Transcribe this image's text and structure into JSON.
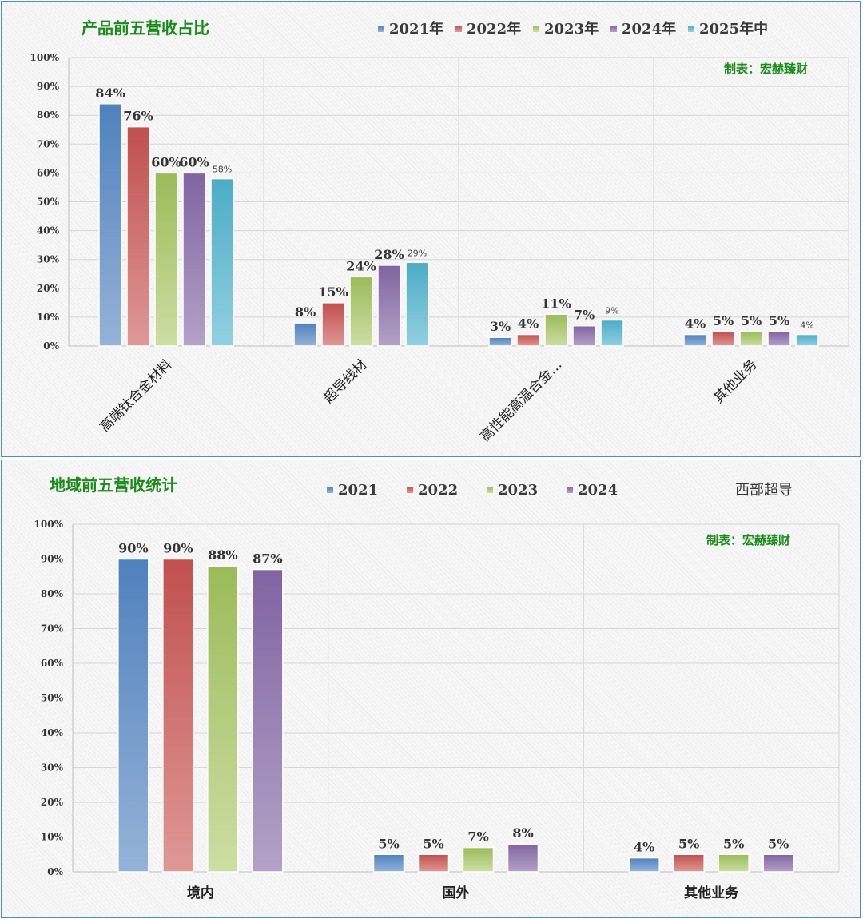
{
  "colors": {
    "s2021": [
      "#4f81bd",
      "#95b3d7"
    ],
    "s2022": [
      "#c0504d",
      "#df9896"
    ],
    "s2023": [
      "#9bbb59",
      "#cddea3"
    ],
    "s2024": [
      "#8064a2",
      "#b3a2c7"
    ],
    "s2025": [
      "#4bacc6",
      "#92d0e0"
    ]
  },
  "chart_data": [
    {
      "type": "bar",
      "title": "产品前五营收占比",
      "credit": "制表：宏赫臻财",
      "categories": [
        "高端钛合金材料",
        "超导线材",
        "高性能高温合金…",
        "其他业务"
      ],
      "series": [
        {
          "name": "2021年",
          "values": [
            84,
            8,
            3,
            4
          ],
          "labels": [
            "84%",
            "8%",
            "3%",
            "4%"
          ]
        },
        {
          "name": "2022年",
          "values": [
            76,
            15,
            4,
            5
          ],
          "labels": [
            "76%",
            "15%",
            "4%",
            "5%"
          ]
        },
        {
          "name": "2023年",
          "values": [
            60,
            24,
            11,
            5
          ],
          "labels": [
            "60%",
            "24%",
            "11%",
            "5%"
          ]
        },
        {
          "name": "2024年",
          "values": [
            60,
            28,
            7,
            5
          ],
          "labels": [
            "60%",
            "28%",
            "7%",
            "5%"
          ]
        },
        {
          "name": "2025年中",
          "values": [
            58,
            29,
            9,
            4
          ],
          "labels": [
            "58%",
            "29%",
            "9%",
            "4%"
          ]
        }
      ],
      "ylim": [
        0,
        100
      ],
      "yticks": [
        "0%",
        "10%",
        "20%",
        "30%",
        "40%",
        "50%",
        "60%",
        "70%",
        "80%",
        "90%",
        "100%"
      ],
      "grid": true,
      "legend": "top"
    },
    {
      "type": "bar",
      "title": "地域前五营收统计",
      "credit": "制表：宏赫臻财",
      "source": "西部超导",
      "categories": [
        "境内",
        "国外",
        "其他业务"
      ],
      "series": [
        {
          "name": "2021",
          "values": [
            90,
            5,
            4
          ],
          "labels": [
            "90%",
            "5%",
            "4%"
          ]
        },
        {
          "name": "2022",
          "values": [
            90,
            5,
            5
          ],
          "labels": [
            "90%",
            "5%",
            "5%"
          ]
        },
        {
          "name": "2023",
          "values": [
            88,
            7,
            5
          ],
          "labels": [
            "88%",
            "7%",
            "5%"
          ]
        },
        {
          "name": "2024",
          "values": [
            87,
            8,
            5
          ],
          "labels": [
            "87%",
            "8%",
            "5%"
          ]
        }
      ],
      "ylim": [
        0,
        100
      ],
      "yticks": [
        "0%",
        "10%",
        "20%",
        "30%",
        "40%",
        "50%",
        "60%",
        "70%",
        "80%",
        "90%",
        "100%"
      ],
      "grid": true,
      "legend": "top"
    }
  ]
}
